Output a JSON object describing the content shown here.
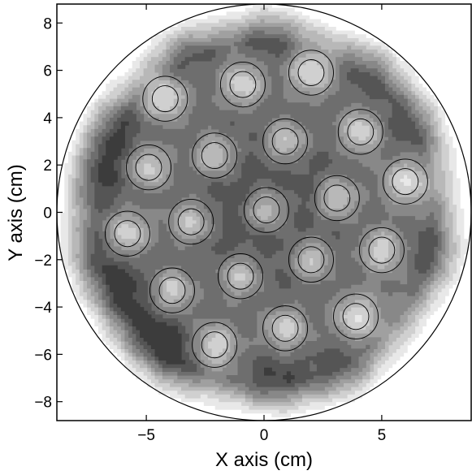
{
  "chart_data": {
    "type": "heatmap",
    "style": "filled-contour",
    "xlabel": "X  axis (cm)",
    "ylabel": "Y  axis (cm)",
    "xlim": [
      -8.8,
      8.8
    ],
    "ylim": [
      -8.8,
      8.8
    ],
    "x_ticks": [
      -5,
      0,
      5
    ],
    "y_ticks": [
      -8,
      -6,
      -4,
      -2,
      0,
      2,
      4,
      6,
      8
    ],
    "grid": false,
    "legend": "none",
    "region": {
      "shape": "circle",
      "center": [
        0,
        0
      ],
      "radius": 8.8
    },
    "contour_fills": [
      "#ffffff",
      "#e8e8e8",
      "#d0d0d0",
      "#b8b8b8",
      "#a0a0a0",
      "#888888",
      "#6e6e6e",
      "#555555",
      "#3c3c3c"
    ],
    "hotspots": [
      {
        "x": -4.2,
        "y": 4.8
      },
      {
        "x": -0.9,
        "y": 5.4
      },
      {
        "x": 2.0,
        "y": 5.9
      },
      {
        "x": 0.9,
        "y": 3.0
      },
      {
        "x": 4.1,
        "y": 3.4
      },
      {
        "x": -2.1,
        "y": 2.4
      },
      {
        "x": -4.9,
        "y": 1.9
      },
      {
        "x": 3.1,
        "y": 0.6
      },
      {
        "x": 6.0,
        "y": 1.3
      },
      {
        "x": 0.1,
        "y": 0.1
      },
      {
        "x": -3.1,
        "y": -0.4
      },
      {
        "x": -5.8,
        "y": -0.9
      },
      {
        "x": 2.0,
        "y": -2.0
      },
      {
        "x": 5.0,
        "y": -1.6
      },
      {
        "x": -1.0,
        "y": -2.7
      },
      {
        "x": -3.9,
        "y": -3.3
      },
      {
        "x": 3.9,
        "y": -4.4
      },
      {
        "x": 0.9,
        "y": -4.9
      },
      {
        "x": -2.1,
        "y": -5.6
      }
    ],
    "dark_regions": [
      {
        "x": -7.2,
        "y": 1.5
      },
      {
        "x": -6.5,
        "y": 3.6
      },
      {
        "x": -5.0,
        "y": -5.5
      },
      {
        "x": -3.8,
        "y": -6.6
      },
      {
        "x": -6.2,
        "y": -3.5
      },
      {
        "x": -3.5,
        "y": 7.1
      },
      {
        "x": 0.5,
        "y": -7.3
      },
      {
        "x": 3.5,
        "y": -7.0
      },
      {
        "x": 7.4,
        "y": -1.8
      },
      {
        "x": 6.5,
        "y": 3.8
      },
      {
        "x": 4.8,
        "y": 6.2
      },
      {
        "x": 0.2,
        "y": 7.8
      },
      {
        "x": -7.6,
        "y": -1.8
      }
    ]
  }
}
